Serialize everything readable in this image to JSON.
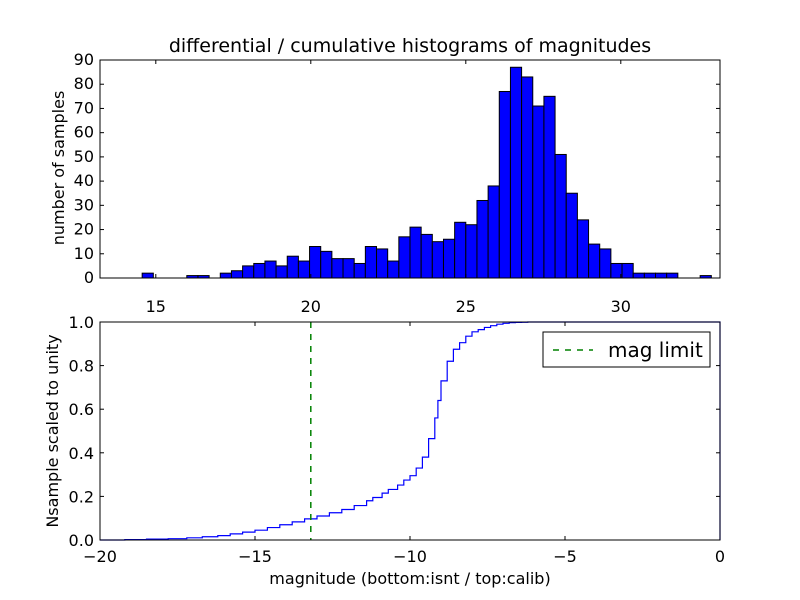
{
  "colors": {
    "bar_fill": "#0000ff",
    "bar_edge": "#000000",
    "step_line": "#0000ff",
    "mag_limit_line": "#008000"
  },
  "chart_data": [
    {
      "type": "bar",
      "subtype": "histogram",
      "title": "differential / cumulative histograms of magnitudes",
      "xlabel": "",
      "ylabel": "number of samples",
      "xlim": [
        13.2,
        33.2
      ],
      "ylim": [
        0,
        90
      ],
      "xticks": [
        15,
        20,
        25,
        30
      ],
      "xtick_labels": [
        "15",
        "20",
        "25",
        "30"
      ],
      "yticks": [
        0,
        10,
        20,
        30,
        40,
        50,
        60,
        70,
        80,
        90
      ],
      "ytick_labels": [
        "0",
        "10",
        "20",
        "30",
        "40",
        "50",
        "60",
        "70",
        "80",
        "90"
      ],
      "bin_start": 14.2,
      "bin_width": 0.36,
      "values": [
        0,
        2,
        0,
        0,
        0,
        1,
        1,
        0,
        2,
        3,
        5,
        6,
        7,
        5,
        9,
        7,
        13,
        11,
        8,
        8,
        6,
        13,
        12,
        7,
        17,
        21,
        18,
        15,
        16,
        23,
        22,
        32,
        38,
        77,
        87,
        83,
        71,
        75,
        51,
        35,
        24,
        14,
        12,
        6,
        6,
        2,
        2,
        2,
        2,
        0,
        0,
        1
      ]
    },
    {
      "type": "line",
      "subtype": "step",
      "xlabel": "magnitude (bottom:isnt / top:calib)",
      "ylabel": "Nsample scaled to unity",
      "xlim": [
        -20,
        0
      ],
      "ylim": [
        0,
        1.0
      ],
      "xticks": [
        -20,
        -15,
        -10,
        -5,
        0
      ],
      "xtick_labels": [
        "−20",
        "−15",
        "−10",
        "−5",
        "0"
      ],
      "yticks": [
        0,
        0.2,
        0.4,
        0.6,
        0.8,
        1.0
      ],
      "ytick_labels": [
        "0.0",
        "0.2",
        "0.4",
        "0.6",
        "0.8",
        "1.0"
      ],
      "series": [
        {
          "name": "cumulative",
          "x": [
            -20,
            -19.2,
            -18.5,
            -17.8,
            -17.2,
            -16.7,
            -16.2,
            -15.8,
            -15.4,
            -15.0,
            -14.6,
            -14.2,
            -13.8,
            -13.4,
            -13.0,
            -12.6,
            -12.2,
            -11.8,
            -11.4,
            -11.2,
            -10.9,
            -10.7,
            -10.4,
            -10.2,
            -10.0,
            -9.8,
            -9.6,
            -9.4,
            -9.2,
            -9.1,
            -9.0,
            -8.8,
            -8.6,
            -8.4,
            -8.2,
            -8.0,
            -7.8,
            -7.6,
            -7.4,
            -7.2,
            -7.0,
            -6.8,
            -6.6,
            -6.4,
            -6.2,
            -6.0,
            -5.8,
            -5.6,
            -5.4,
            -5.2,
            0
          ],
          "y": [
            0,
            0.002,
            0.004,
            0.006,
            0.01,
            0.015,
            0.02,
            0.028,
            0.036,
            0.045,
            0.057,
            0.07,
            0.083,
            0.097,
            0.11,
            0.125,
            0.14,
            0.158,
            0.18,
            0.195,
            0.215,
            0.232,
            0.252,
            0.275,
            0.295,
            0.33,
            0.38,
            0.465,
            0.56,
            0.64,
            0.73,
            0.82,
            0.875,
            0.905,
            0.935,
            0.955,
            0.965,
            0.975,
            0.983,
            0.99,
            0.994,
            0.997,
            0.998,
            0.999,
            1.0,
            1.0,
            1.0,
            1.0,
            1.0,
            1.0,
            1.0
          ]
        }
      ],
      "annotations": [
        {
          "type": "vline",
          "x": -13.2,
          "style": "dashed",
          "label": "mag limit"
        }
      ],
      "legend": {
        "position": "top-right",
        "entries": [
          "mag limit"
        ]
      }
    }
  ]
}
